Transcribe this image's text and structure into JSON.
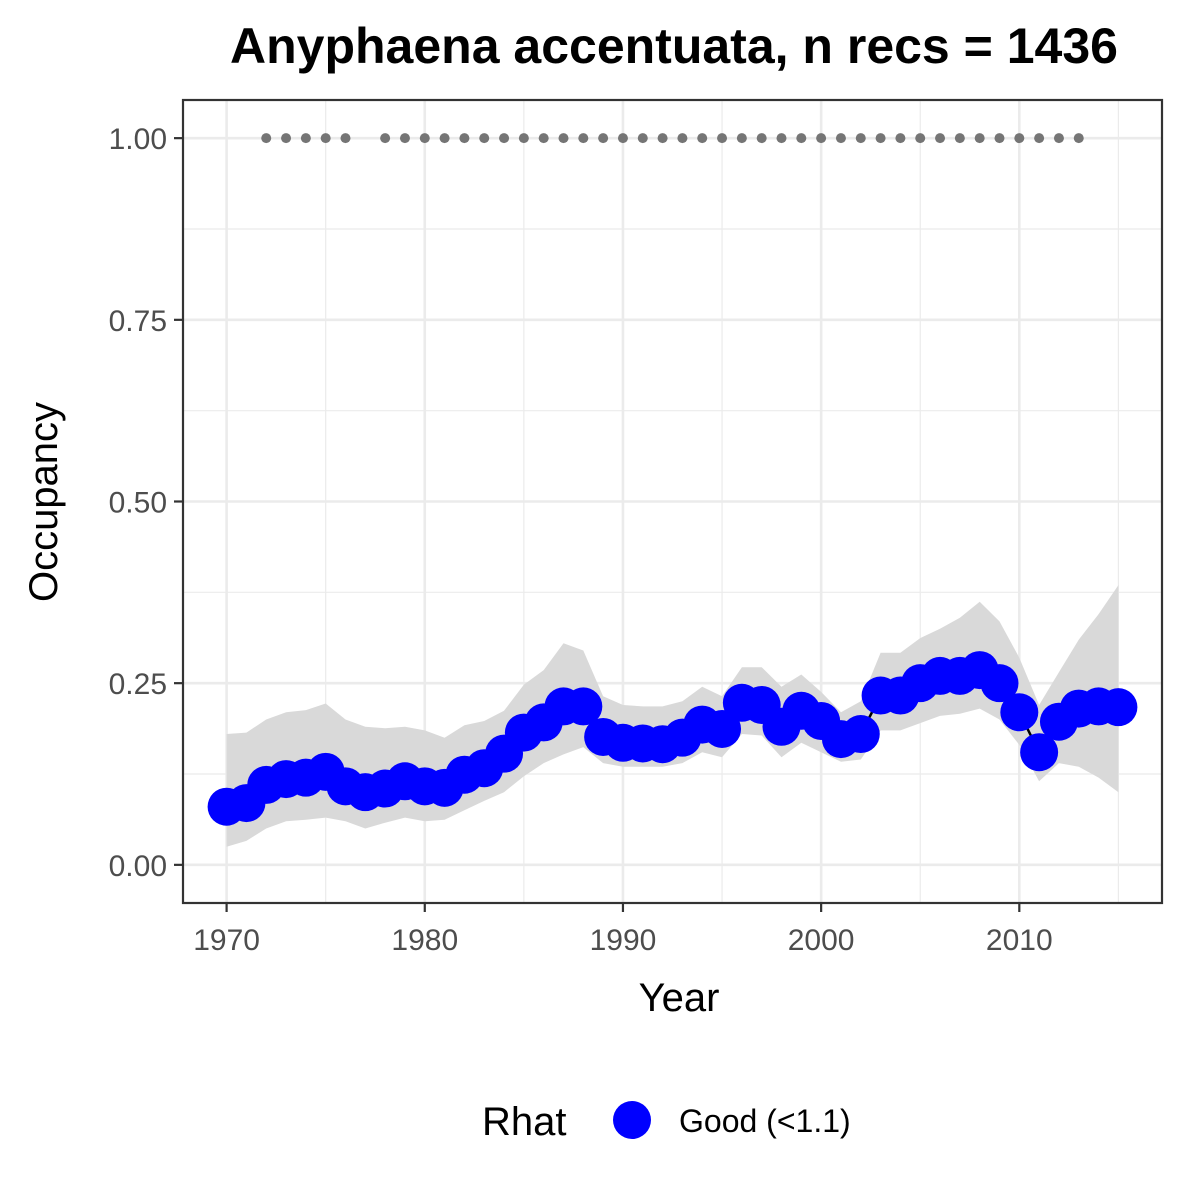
{
  "chart_data": {
    "type": "line",
    "title": "Anyphaena accentuata, n recs = 1436",
    "xlabel": "Year",
    "ylabel": "Occupancy",
    "xlim": [
      1967.8,
      1017.2
    ],
    "ylim": [
      -0.0525,
      1.0525
    ],
    "x_ticks": [
      1970,
      1980,
      1990,
      2000,
      2010
    ],
    "x_tick_labels": [
      "1970",
      "1980",
      "1990",
      "2000",
      "2010"
    ],
    "y_ticks": [
      0,
      0.25,
      0.5,
      0.75,
      1.0
    ],
    "y_tick_labels": [
      "0.00",
      "0.25",
      "0.50",
      "0.75",
      "1.00"
    ],
    "grid": true,
    "legend_position": "bottom",
    "legend": {
      "title": "Rhat",
      "entries": [
        {
          "label": "Good (<1.1)",
          "color": "#0000ff"
        }
      ]
    },
    "colors": {
      "point": "#0000ff",
      "ribbon": "#d9d9d9",
      "rug": "#757575",
      "grid": "#ebebeb",
      "panel_border": "#333333"
    },
    "series": [
      {
        "type": "line-with-points-and-ribbon",
        "x": [
          1970,
          1971,
          1972,
          1973,
          1974,
          1975,
          1976,
          1977,
          1978,
          1979,
          1980,
          1981,
          1982,
          1983,
          1984,
          1985,
          1986,
          1987,
          1988,
          1989,
          1990,
          1991,
          1992,
          1993,
          1994,
          1995,
          1996,
          1997,
          1998,
          1999,
          2000,
          2001,
          2002,
          2003,
          2004,
          2005,
          2006,
          2007,
          2008,
          2009,
          2010,
          2011,
          2012,
          2013,
          2014,
          2015
        ],
        "y": [
          0.08,
          0.085,
          0.11,
          0.118,
          0.12,
          0.128,
          0.108,
          0.1,
          0.105,
          0.115,
          0.108,
          0.106,
          0.124,
          0.133,
          0.153,
          0.182,
          0.196,
          0.218,
          0.218,
          0.176,
          0.168,
          0.167,
          0.166,
          0.175,
          0.193,
          0.187,
          0.223,
          0.22,
          0.19,
          0.212,
          0.198,
          0.173,
          0.18,
          0.233,
          0.233,
          0.25,
          0.26,
          0.26,
          0.268,
          0.25,
          0.21,
          0.155,
          0.197,
          0.215,
          0.218,
          0.217
        ],
        "lower": [
          0.025,
          0.033,
          0.05,
          0.06,
          0.062,
          0.065,
          0.06,
          0.05,
          0.058,
          0.065,
          0.06,
          0.062,
          0.075,
          0.088,
          0.1,
          0.122,
          0.14,
          0.152,
          0.162,
          0.14,
          0.135,
          0.135,
          0.135,
          0.14,
          0.155,
          0.148,
          0.18,
          0.178,
          0.148,
          0.168,
          0.155,
          0.142,
          0.145,
          0.185,
          0.185,
          0.195,
          0.205,
          0.208,
          0.215,
          0.2,
          0.165,
          0.115,
          0.14,
          0.135,
          0.12,
          0.1
        ],
        "upper": [
          0.18,
          0.182,
          0.2,
          0.21,
          0.213,
          0.222,
          0.2,
          0.19,
          0.188,
          0.19,
          0.185,
          0.175,
          0.192,
          0.198,
          0.212,
          0.248,
          0.268,
          0.305,
          0.295,
          0.232,
          0.22,
          0.218,
          0.218,
          0.225,
          0.245,
          0.232,
          0.272,
          0.272,
          0.245,
          0.262,
          0.238,
          0.21,
          0.225,
          0.292,
          0.292,
          0.312,
          0.325,
          0.34,
          0.362,
          0.335,
          0.285,
          0.22,
          0.265,
          0.31,
          0.345,
          0.385
        ]
      }
    ],
    "rug": {
      "y": 1.0,
      "x": [
        1972,
        1973,
        1974,
        1975,
        1976,
        1978,
        1979,
        1980,
        1981,
        1982,
        1983,
        1984,
        1985,
        1986,
        1987,
        1988,
        1989,
        1990,
        1991,
        1992,
        1993,
        1994,
        1995,
        1996,
        1997,
        1998,
        1999,
        2000,
        2001,
        2002,
        2003,
        2004,
        2005,
        2006,
        2007,
        2008,
        2009,
        2010,
        2011,
        2012,
        2013
      ]
    }
  }
}
